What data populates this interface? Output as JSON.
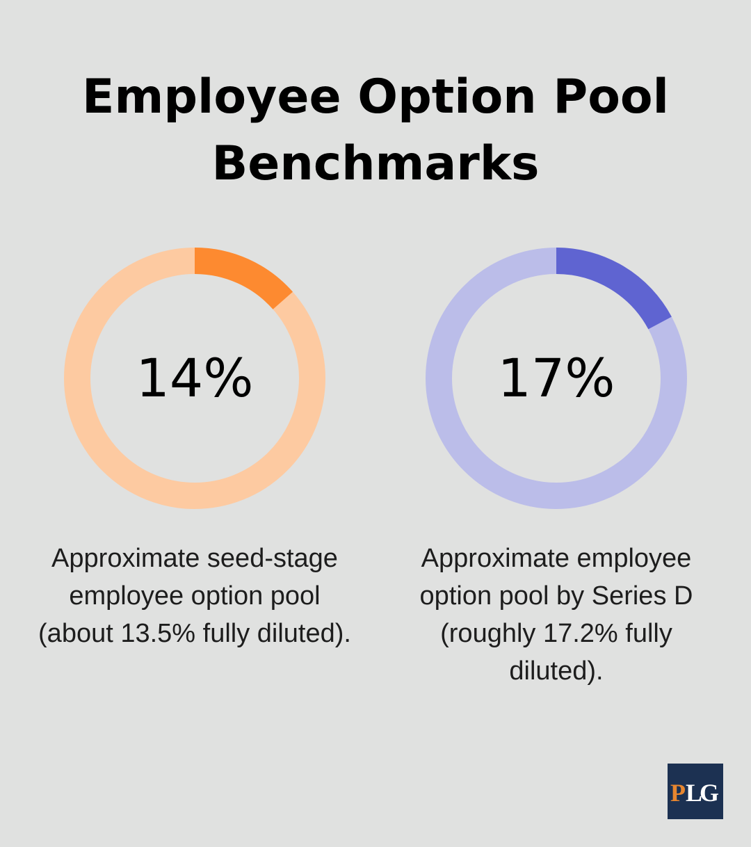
{
  "title_lines": [
    "Employee Option Pool",
    "Benchmarks"
  ],
  "chart_data": [
    {
      "type": "pie",
      "variant": "donut",
      "label": "14%",
      "value": 13.5,
      "max": 100,
      "description": "Approximate seed-stage employee option pool (about 13.5% fully diluted).",
      "colors": {
        "fill": "#fd8a30",
        "track": "#fdcaa1"
      }
    },
    {
      "type": "pie",
      "variant": "donut",
      "label": "17%",
      "value": 17.2,
      "max": 100,
      "description": "Approximate employee option pool by Series D (roughly 17.2% fully diluted).",
      "colors": {
        "fill": "#5f64d1",
        "track": "#bbbde9"
      }
    }
  ],
  "logo": {
    "text": "PLG",
    "colors": {
      "background": "#1c3152",
      "letter_p": "#e7862f",
      "letter_l": "#ffffff",
      "letter_g": "#ffffff"
    }
  }
}
